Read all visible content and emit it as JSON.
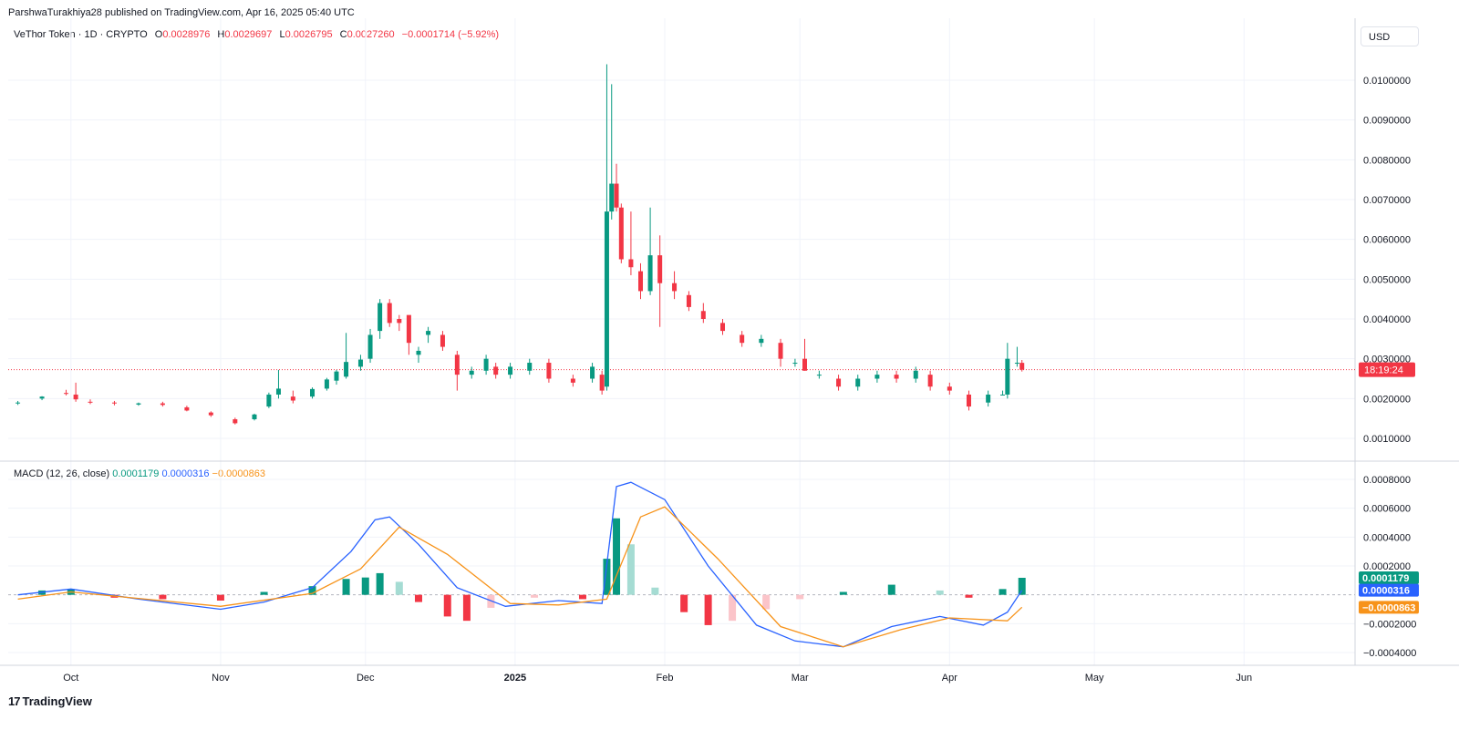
{
  "header": {
    "published": "ParshwaTurakhiya28 published on TradingView.com, Apr 16, 2025 05:40 UTC"
  },
  "legend": {
    "symbol": "VeThor Token · 1D · CRYPTO",
    "o_label": "O",
    "o_value": "0.0028976",
    "h_label": "H",
    "h_value": "0.0029697",
    "l_label": "L",
    "l_value": "0.0026795",
    "c_label": "C",
    "c_value": "0.0027260",
    "change": "−0.0001714 (−5.92%)"
  },
  "currency_button": "USD",
  "macd_legend": {
    "label": "MACD (12, 26, close)",
    "hist": "0.0001179",
    "macd": "0.0000316",
    "signal": "−0.0000863"
  },
  "footer": {
    "brand": "TradingView",
    "logo": "17"
  },
  "colors": {
    "up": "#089981",
    "down": "#f23645",
    "up_light": "#a5dcd3",
    "down_light": "#fbc4c9",
    "macd_line": "#2962ff",
    "signal_line": "#f7931a",
    "grid": "#f0f3fa"
  },
  "chart_data": [
    {
      "type": "candlestick",
      "title": "VeThor Token · 1D · CRYPTO",
      "ylim": [
        0.00044,
        0.0105
      ],
      "y_ticks": [
        "0.0100000",
        "0.0090000",
        "0.0080000",
        "0.0070000",
        "0.0060000",
        "0.0050000",
        "0.0040000",
        "0.0030000",
        "0.0020000",
        "0.0010000"
      ],
      "x_ticks": [
        "Oct",
        "Nov",
        "Dec",
        "2025",
        "Feb",
        "Mar",
        "Apr",
        "May",
        "Jun"
      ],
      "current_price_label": "18:19:24",
      "current_price": 0.002726,
      "series": [
        {
          "date": "2024-09-20",
          "o": 0.00188,
          "h": 0.00194,
          "l": 0.00184,
          "c": 0.0019
        },
        {
          "date": "2024-09-25",
          "o": 0.002,
          "h": 0.00206,
          "l": 0.00196,
          "c": 0.00205
        },
        {
          "date": "2024-09-30",
          "o": 0.00214,
          "h": 0.00222,
          "l": 0.00208,
          "c": 0.00212
        },
        {
          "date": "2024-10-02",
          "o": 0.0021,
          "h": 0.0024,
          "l": 0.00192,
          "c": 0.00198
        },
        {
          "date": "2024-10-05",
          "o": 0.00192,
          "h": 0.00198,
          "l": 0.00186,
          "c": 0.0019
        },
        {
          "date": "2024-10-10",
          "o": 0.0019,
          "h": 0.00194,
          "l": 0.00183,
          "c": 0.00188
        },
        {
          "date": "2024-10-15",
          "o": 0.00185,
          "h": 0.0019,
          "l": 0.00182,
          "c": 0.00188
        },
        {
          "date": "2024-10-20",
          "o": 0.00188,
          "h": 0.00192,
          "l": 0.0018,
          "c": 0.00184
        },
        {
          "date": "2024-10-25",
          "o": 0.00178,
          "h": 0.00182,
          "l": 0.00168,
          "c": 0.0017
        },
        {
          "date": "2024-10-30",
          "o": 0.00165,
          "h": 0.00168,
          "l": 0.00154,
          "c": 0.00158
        },
        {
          "date": "2024-11-04",
          "o": 0.00148,
          "h": 0.00152,
          "l": 0.00135,
          "c": 0.00138
        },
        {
          "date": "2024-11-08",
          "o": 0.00148,
          "h": 0.00162,
          "l": 0.00145,
          "c": 0.0016
        },
        {
          "date": "2024-11-11",
          "o": 0.0018,
          "h": 0.00215,
          "l": 0.00176,
          "c": 0.0021
        },
        {
          "date": "2024-11-13",
          "o": 0.0021,
          "h": 0.00272,
          "l": 0.002,
          "c": 0.00225
        },
        {
          "date": "2024-11-16",
          "o": 0.00205,
          "h": 0.0022,
          "l": 0.00188,
          "c": 0.00195
        },
        {
          "date": "2024-11-20",
          "o": 0.00205,
          "h": 0.00228,
          "l": 0.002,
          "c": 0.00224
        },
        {
          "date": "2024-11-23",
          "o": 0.00225,
          "h": 0.00252,
          "l": 0.0022,
          "c": 0.00248
        },
        {
          "date": "2024-11-25",
          "o": 0.00245,
          "h": 0.00272,
          "l": 0.00235,
          "c": 0.00268
        },
        {
          "date": "2024-11-27",
          "o": 0.00255,
          "h": 0.00365,
          "l": 0.0025,
          "c": 0.00292
        },
        {
          "date": "2024-11-30",
          "o": 0.0028,
          "h": 0.0031,
          "l": 0.0027,
          "c": 0.00298
        },
        {
          "date": "2024-12-02",
          "o": 0.003,
          "h": 0.00375,
          "l": 0.0029,
          "c": 0.0036
        },
        {
          "date": "2024-12-04",
          "o": 0.0037,
          "h": 0.0045,
          "l": 0.0035,
          "c": 0.0044
        },
        {
          "date": "2024-12-06",
          "o": 0.0044,
          "h": 0.0045,
          "l": 0.0038,
          "c": 0.0039
        },
        {
          "date": "2024-12-08",
          "o": 0.004,
          "h": 0.0041,
          "l": 0.0037,
          "c": 0.0039
        },
        {
          "date": "2024-12-10",
          "o": 0.0041,
          "h": 0.00405,
          "l": 0.0031,
          "c": 0.0034
        },
        {
          "date": "2024-12-12",
          "o": 0.0031,
          "h": 0.0033,
          "l": 0.0029,
          "c": 0.0032
        },
        {
          "date": "2024-12-14",
          "o": 0.0036,
          "h": 0.0038,
          "l": 0.0034,
          "c": 0.0037
        },
        {
          "date": "2024-12-17",
          "o": 0.0036,
          "h": 0.0037,
          "l": 0.0032,
          "c": 0.0033
        },
        {
          "date": "2024-12-20",
          "o": 0.0031,
          "h": 0.0032,
          "l": 0.0022,
          "c": 0.0026
        },
        {
          "date": "2024-12-23",
          "o": 0.0026,
          "h": 0.0028,
          "l": 0.0025,
          "c": 0.0027
        },
        {
          "date": "2024-12-26",
          "o": 0.0027,
          "h": 0.0031,
          "l": 0.0026,
          "c": 0.003
        },
        {
          "date": "2024-12-28",
          "o": 0.0028,
          "h": 0.0029,
          "l": 0.0025,
          "c": 0.0026
        },
        {
          "date": "2024-12-31",
          "o": 0.0026,
          "h": 0.0029,
          "l": 0.0025,
          "c": 0.0028
        },
        {
          "date": "2025-01-04",
          "o": 0.0027,
          "h": 0.003,
          "l": 0.0026,
          "c": 0.0029
        },
        {
          "date": "2025-01-08",
          "o": 0.0029,
          "h": 0.003,
          "l": 0.0024,
          "c": 0.0025
        },
        {
          "date": "2025-01-13",
          "o": 0.0025,
          "h": 0.0026,
          "l": 0.0023,
          "c": 0.0024
        },
        {
          "date": "2025-01-17",
          "o": 0.0025,
          "h": 0.0029,
          "l": 0.0024,
          "c": 0.0028
        },
        {
          "date": "2025-01-19",
          "o": 0.0026,
          "h": 0.0027,
          "l": 0.0021,
          "c": 0.0022
        },
        {
          "date": "2025-01-20",
          "o": 0.0023,
          "h": 0.0104,
          "l": 0.0022,
          "c": 0.0067
        },
        {
          "date": "2025-01-21",
          "o": 0.0067,
          "h": 0.0099,
          "l": 0.0065,
          "c": 0.0074
        },
        {
          "date": "2025-01-22",
          "o": 0.0074,
          "h": 0.0079,
          "l": 0.0067,
          "c": 0.0068
        },
        {
          "date": "2025-01-23",
          "o": 0.0068,
          "h": 0.0069,
          "l": 0.0054,
          "c": 0.0055
        },
        {
          "date": "2025-01-25",
          "o": 0.0055,
          "h": 0.0067,
          "l": 0.0051,
          "c": 0.0053
        },
        {
          "date": "2025-01-27",
          "o": 0.0052,
          "h": 0.0054,
          "l": 0.0045,
          "c": 0.0047
        },
        {
          "date": "2025-01-29",
          "o": 0.0047,
          "h": 0.0068,
          "l": 0.0046,
          "c": 0.0056
        },
        {
          "date": "2025-01-31",
          "o": 0.0056,
          "h": 0.0061,
          "l": 0.0038,
          "c": 0.0049
        },
        {
          "date": "2025-02-03",
          "o": 0.0049,
          "h": 0.0052,
          "l": 0.0045,
          "c": 0.0047
        },
        {
          "date": "2025-02-06",
          "o": 0.0046,
          "h": 0.0047,
          "l": 0.0042,
          "c": 0.0043
        },
        {
          "date": "2025-02-09",
          "o": 0.0042,
          "h": 0.0044,
          "l": 0.0039,
          "c": 0.004
        },
        {
          "date": "2025-02-13",
          "o": 0.0039,
          "h": 0.004,
          "l": 0.0036,
          "c": 0.0037
        },
        {
          "date": "2025-02-17",
          "o": 0.0036,
          "h": 0.0037,
          "l": 0.0033,
          "c": 0.0034
        },
        {
          "date": "2025-02-21",
          "o": 0.0034,
          "h": 0.0036,
          "l": 0.0033,
          "c": 0.0035
        },
        {
          "date": "2025-02-25",
          "o": 0.0034,
          "h": 0.0035,
          "l": 0.0028,
          "c": 0.003
        },
        {
          "date": "2025-02-28",
          "o": 0.0029,
          "h": 0.003,
          "l": 0.0028,
          "c": 0.0029
        },
        {
          "date": "2025-03-02",
          "o": 0.003,
          "h": 0.0035,
          "l": 0.0027,
          "c": 0.0027
        },
        {
          "date": "2025-03-05",
          "o": 0.0026,
          "h": 0.0027,
          "l": 0.0025,
          "c": 0.0026
        },
        {
          "date": "2025-03-09",
          "o": 0.0025,
          "h": 0.0026,
          "l": 0.0022,
          "c": 0.0023
        },
        {
          "date": "2025-03-13",
          "o": 0.0023,
          "h": 0.0026,
          "l": 0.0022,
          "c": 0.0025
        },
        {
          "date": "2025-03-17",
          "o": 0.0025,
          "h": 0.0027,
          "l": 0.0024,
          "c": 0.0026
        },
        {
          "date": "2025-03-21",
          "o": 0.0026,
          "h": 0.0027,
          "l": 0.0024,
          "c": 0.0025
        },
        {
          "date": "2025-03-25",
          "o": 0.0025,
          "h": 0.0028,
          "l": 0.0024,
          "c": 0.0027
        },
        {
          "date": "2025-03-28",
          "o": 0.0026,
          "h": 0.0027,
          "l": 0.0022,
          "c": 0.0023
        },
        {
          "date": "2025-04-01",
          "o": 0.0023,
          "h": 0.0024,
          "l": 0.0021,
          "c": 0.0022
        },
        {
          "date": "2025-04-05",
          "o": 0.0021,
          "h": 0.0022,
          "l": 0.0017,
          "c": 0.0018
        },
        {
          "date": "2025-04-09",
          "o": 0.0019,
          "h": 0.0022,
          "l": 0.0018,
          "c": 0.0021
        },
        {
          "date": "2025-04-12",
          "o": 0.0021,
          "h": 0.0022,
          "l": 0.0021,
          "c": 0.0021
        },
        {
          "date": "2025-04-13",
          "o": 0.0021,
          "h": 0.0034,
          "l": 0.002,
          "c": 0.003
        },
        {
          "date": "2025-04-15",
          "o": 0.0029,
          "h": 0.0033,
          "l": 0.0028,
          "c": 0.0029
        },
        {
          "date": "2025-04-16",
          "o": 0.0028976,
          "h": 0.0029697,
          "l": 0.0026795,
          "c": 0.002726
        }
      ]
    },
    {
      "type": "macd",
      "title": "MACD (12, 26, close)",
      "ylim": [
        -0.00048,
        0.0008
      ],
      "y_ticks": [
        "0.0008000",
        "0.0006000",
        "0.0004000",
        "0.0002000",
        "−0.0002000",
        "−0.0004000"
      ],
      "last_values": {
        "histogram": 0.0001179,
        "macd": 3.16e-05,
        "signal": -8.63e-05
      },
      "histogram": [
        {
          "date": "2024-09-25",
          "v": 3e-05
        },
        {
          "date": "2024-10-01",
          "v": 4e-05
        },
        {
          "date": "2024-10-10",
          "v": -2e-05
        },
        {
          "date": "2024-10-20",
          "v": -3e-05
        },
        {
          "date": "2024-11-01",
          "v": -4e-05
        },
        {
          "date": "2024-11-10",
          "v": 2e-05
        },
        {
          "date": "2024-11-20",
          "v": 6e-05
        },
        {
          "date": "2024-11-27",
          "v": 0.00011
        },
        {
          "date": "2024-12-01",
          "v": 0.00012
        },
        {
          "date": "2024-12-04",
          "v": 0.00015
        },
        {
          "date": "2024-12-08",
          "v": 9e-05
        },
        {
          "date": "2024-12-12",
          "v": -5e-05
        },
        {
          "date": "2024-12-18",
          "v": -0.00015
        },
        {
          "date": "2024-12-22",
          "v": -0.00018
        },
        {
          "date": "2024-12-27",
          "v": -9e-05
        },
        {
          "date": "2025-01-05",
          "v": -2e-05
        },
        {
          "date": "2025-01-15",
          "v": -3e-05
        },
        {
          "date": "2025-01-20",
          "v": 0.00025
        },
        {
          "date": "2025-01-22",
          "v": 0.00053
        },
        {
          "date": "2025-01-25",
          "v": 0.00035
        },
        {
          "date": "2025-01-30",
          "v": 5e-05
        },
        {
          "date": "2025-02-05",
          "v": -0.00012
        },
        {
          "date": "2025-02-10",
          "v": -0.00021
        },
        {
          "date": "2025-02-15",
          "v": -0.00018
        },
        {
          "date": "2025-02-22",
          "v": -0.0001
        },
        {
          "date": "2025-03-01",
          "v": -3e-05
        },
        {
          "date": "2025-03-10",
          "v": 2e-05
        },
        {
          "date": "2025-03-20",
          "v": 7e-05
        },
        {
          "date": "2025-03-30",
          "v": 3e-05
        },
        {
          "date": "2025-04-05",
          "v": -2e-05
        },
        {
          "date": "2025-04-12",
          "v": 4e-05
        },
        {
          "date": "2025-04-16",
          "v": 0.0001179
        }
      ],
      "macd_line": [
        {
          "date": "2024-09-20",
          "v": 0.0
        },
        {
          "date": "2024-10-01",
          "v": 4e-05
        },
        {
          "date": "2024-10-15",
          "v": -3e-05
        },
        {
          "date": "2024-11-01",
          "v": -0.0001
        },
        {
          "date": "2024-11-10",
          "v": -5e-05
        },
        {
          "date": "2024-11-20",
          "v": 5e-05
        },
        {
          "date": "2024-11-28",
          "v": 0.0003
        },
        {
          "date": "2024-12-03",
          "v": 0.00052
        },
        {
          "date": "2024-12-06",
          "v": 0.00054
        },
        {
          "date": "2024-12-12",
          "v": 0.00035
        },
        {
          "date": "2024-12-20",
          "v": 5e-05
        },
        {
          "date": "2024-12-30",
          "v": -8e-05
        },
        {
          "date": "2025-01-10",
          "v": -4e-05
        },
        {
          "date": "2025-01-19",
          "v": -6e-05
        },
        {
          "date": "2025-01-22",
          "v": 0.00075
        },
        {
          "date": "2025-01-25",
          "v": 0.00078
        },
        {
          "date": "2025-02-01",
          "v": 0.00066
        },
        {
          "date": "2025-02-10",
          "v": 0.0002
        },
        {
          "date": "2025-02-20",
          "v": -0.00021
        },
        {
          "date": "2025-02-28",
          "v": -0.00032
        },
        {
          "date": "2025-03-10",
          "v": -0.00036
        },
        {
          "date": "2025-03-20",
          "v": -0.00022
        },
        {
          "date": "2025-03-30",
          "v": -0.00015
        },
        {
          "date": "2025-04-08",
          "v": -0.00021
        },
        {
          "date": "2025-04-13",
          "v": -0.00012
        },
        {
          "date": "2025-04-16",
          "v": 3.16e-05
        }
      ],
      "signal_line": [
        {
          "date": "2024-09-20",
          "v": -3e-05
        },
        {
          "date": "2024-10-01",
          "v": 2e-05
        },
        {
          "date": "2024-11-01",
          "v": -8e-05
        },
        {
          "date": "2024-11-20",
          "v": 1e-05
        },
        {
          "date": "2024-11-30",
          "v": 0.00018
        },
        {
          "date": "2024-12-08",
          "v": 0.00047
        },
        {
          "date": "2024-12-18",
          "v": 0.00028
        },
        {
          "date": "2024-12-31",
          "v": -6e-05
        },
        {
          "date": "2025-01-10",
          "v": -7e-05
        },
        {
          "date": "2025-01-20",
          "v": -3e-05
        },
        {
          "date": "2025-01-27",
          "v": 0.00054
        },
        {
          "date": "2025-02-01",
          "v": 0.00061
        },
        {
          "date": "2025-02-12",
          "v": 0.00025
        },
        {
          "date": "2025-02-25",
          "v": -0.00022
        },
        {
          "date": "2025-03-10",
          "v": -0.00036
        },
        {
          "date": "2025-03-22",
          "v": -0.00024
        },
        {
          "date": "2025-04-01",
          "v": -0.00016
        },
        {
          "date": "2025-04-13",
          "v": -0.00018
        },
        {
          "date": "2025-04-16",
          "v": -8.63e-05
        }
      ]
    }
  ]
}
